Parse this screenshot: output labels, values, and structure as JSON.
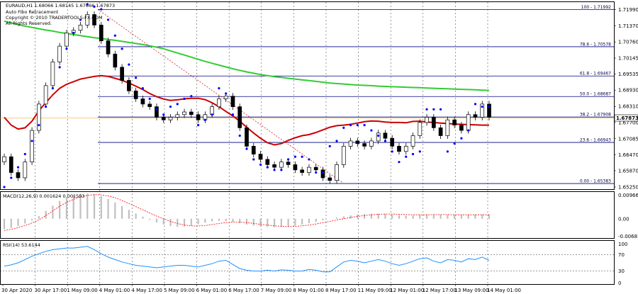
{
  "main_panel": {
    "symbol_line": "EURAUD,H1  1.68066 1.68145 1.67866 1.67873",
    "indicator_name": "Auto Fibo Retracement",
    "copyright": "Copyright © 2010 TRADERTOOLS-FX.COM",
    "rights": "All Rights Reserved.",
    "current_price": "1.67873",
    "price_ticks": [
      "1.71990",
      "1.71370",
      "1.70760",
      "1.70145",
      "1.69535",
      "1.68930",
      "1.68310",
      "1.67700",
      "1.67085",
      "1.66470",
      "1.65870",
      "1.65250"
    ],
    "fibo_levels": [
      {
        "label": "100 - 1.71992",
        "price": 1.71992
      },
      {
        "label": "78.6 - 1.70578",
        "price": 1.70578
      },
      {
        "label": "61.8 - 1.69467",
        "price": 1.69467
      },
      {
        "label": "50.0 - 1.68687",
        "price": 1.68687
      },
      {
        "label": "38.2 - 1.67908",
        "price": 1.67908
      },
      {
        "label": "23.6 - 1.66943",
        "price": 1.66943
      },
      {
        "label": "0.00 - 1.65383",
        "price": 1.65383
      }
    ]
  },
  "macd_panel": {
    "title": "MACD(12,26,9) 0.001624 0.001503",
    "ticks": [
      "0.00966",
      "0.00",
      "-0.00681"
    ]
  },
  "rsi_panel": {
    "title": "RSI(14) 53.6144",
    "ticks": [
      "100",
      "70",
      "30",
      "0"
    ]
  },
  "time_axis": [
    "30 Apr 2020",
    "30 Apr 17:00",
    "1 May 09:00",
    "4 May 01:00",
    "4 May 17:00",
    "5 May 09:00",
    "6 May 01:00",
    "6 May 17:00",
    "7 May 09:00",
    "8 May 01:00",
    "8 May 17:00",
    "11 May 09:00",
    "12 May 01:00",
    "12 May 17:00",
    "13 May 09:00",
    "14 May 01:00"
  ],
  "colors": {
    "candle": "#000000",
    "sar": "#0000ff",
    "ma_fast": "#cc0000",
    "ma_slow": "#33cc33",
    "fibo": "#000080",
    "macd_hist": "#c0c0c0",
    "macd_signal": "#ff0000",
    "rsi": "#1e90ff",
    "grid": "#000000",
    "price_line": "#ff9900"
  },
  "chart_data": [
    {
      "type": "candlestick",
      "title": "EURAUD,H1",
      "ylim": [
        1.6525,
        1.7219
      ],
      "series": [
        {
          "name": "close",
          "values": [
            1.664,
            1.658,
            1.656,
            1.662,
            1.674,
            1.684,
            1.691,
            1.7,
            1.706,
            1.711,
            1.712,
            1.714,
            1.718,
            1.714,
            1.708,
            1.703,
            1.698,
            1.693,
            1.689,
            1.686,
            1.684,
            1.683,
            1.679,
            1.678,
            1.679,
            1.68,
            1.681,
            1.68,
            1.678,
            1.68,
            1.683,
            1.686,
            1.687,
            1.683,
            1.675,
            1.668,
            1.665,
            1.663,
            1.661,
            1.66,
            1.662,
            1.661,
            1.659,
            1.658,
            1.66,
            1.659,
            1.656,
            1.655,
            1.661,
            1.668,
            1.67,
            1.669,
            1.668,
            1.67,
            1.673,
            1.671,
            1.668,
            1.666,
            1.668,
            1.672,
            1.677,
            1.679,
            1.675,
            1.672,
            1.678,
            1.676,
            1.674,
            1.68,
            1.679,
            1.684,
            1.679
          ]
        },
        {
          "name": "Parabolic SAR",
          "values": [
            1.6525,
            1.656,
            1.66,
            1.665,
            1.67,
            1.676,
            1.683,
            1.69,
            1.698,
            1.705,
            1.711,
            1.716,
            1.7219,
            1.721,
            1.72,
            1.716,
            1.71,
            1.705,
            1.699,
            1.694,
            1.69,
            1.686,
            1.682,
            1.68,
            1.683,
            1.684,
            1.686,
            1.687,
            1.676,
            1.678,
            1.68,
            1.69,
            1.688,
            1.68,
            1.672,
            1.667,
            1.663,
            1.661,
            1.66,
            1.659,
            1.659,
            1.663,
            1.664,
            1.664,
            1.663,
            1.658,
            1.658,
            1.668,
            1.67,
            1.675,
            1.676,
            1.676,
            1.676,
            1.674,
            1.672,
            1.67,
            1.666,
            1.662,
            1.664,
            1.665,
            1.666,
            1.682,
            1.682,
            1.682,
            1.666,
            1.669,
            1.671,
            1.674,
            1.684,
            1.683,
            1.683
          ]
        },
        {
          "name": "MA fast",
          "values": [
            1.679,
            1.676,
            1.6745,
            1.675,
            1.6775,
            1.6815,
            1.6845,
            1.6875,
            1.69,
            1.6915,
            1.6925,
            1.6935,
            1.694,
            1.6945,
            1.6948,
            1.6945,
            1.6938,
            1.693,
            1.692,
            1.6908,
            1.6895,
            1.688,
            1.6868,
            1.6859,
            1.6854,
            1.6856,
            1.686,
            1.6862,
            1.6862,
            1.6857,
            1.6845,
            1.683,
            1.6812,
            1.6795,
            1.6775,
            1.6752,
            1.673,
            1.671,
            1.6693,
            1.6685,
            1.669,
            1.6702,
            1.6712,
            1.672,
            1.6724,
            1.6732,
            1.6742,
            1.6752,
            1.6758,
            1.676,
            1.6763,
            1.6768,
            1.6773,
            1.6776,
            1.6775,
            1.6772,
            1.677,
            1.677,
            1.6769,
            1.6774,
            1.6775,
            1.6772,
            1.677,
            1.6768,
            1.6766,
            1.6764,
            1.6763,
            1.6762,
            1.6761,
            1.676,
            1.676
          ]
        },
        {
          "name": "MA slow",
          "values": [
            1.7155,
            1.7148,
            1.7142,
            1.7136,
            1.7131,
            1.7126,
            1.7121,
            1.7117,
            1.7112,
            1.7108,
            1.7104,
            1.71,
            1.7096,
            1.7092,
            1.7089,
            1.7085,
            1.7082,
            1.7078,
            1.7074,
            1.707,
            1.7066,
            1.7061,
            1.7056,
            1.705,
            1.7042,
            1.7034,
            1.7026,
            1.7018,
            1.701,
            1.7002,
            1.6995,
            1.6988,
            1.6981,
            1.6974,
            1.6968,
            1.6962,
            1.6957,
            1.6952,
            1.6948,
            1.6944,
            1.6941,
            1.6938,
            1.6935,
            1.6932,
            1.6929,
            1.6926,
            1.6923,
            1.692,
            1.6918,
            1.6916,
            1.6914,
            1.6912,
            1.6911,
            1.691,
            1.6908,
            1.6907,
            1.6906,
            1.6905,
            1.6904,
            1.6903,
            1.6902,
            1.6901,
            1.69,
            1.6899,
            1.6898,
            1.6897,
            1.6896,
            1.6895,
            1.6894,
            1.6893,
            1.6892
          ]
        }
      ]
    },
    {
      "type": "bar",
      "title": "MACD(12,26,9) 0.001624 0.001503",
      "ylim": [
        -0.00681,
        0.00966
      ],
      "series": [
        {
          "name": "MACD",
          "values": [
            -0.004,
            -0.0035,
            -0.0028,
            -0.0018,
            -0.0006,
            0.001,
            0.003,
            0.005,
            0.0068,
            0.008,
            0.009,
            0.0095,
            0.0096,
            0.0093,
            0.0086,
            0.0075,
            0.0062,
            0.0048,
            0.0034,
            0.002,
            0.0008,
            -0.0004,
            -0.0014,
            -0.0022,
            -0.0028,
            -0.0031,
            -0.003,
            -0.0026,
            -0.0021,
            -0.0015,
            -0.001,
            -0.0008,
            -0.0009,
            -0.0012,
            -0.0017,
            -0.0022,
            -0.0026,
            -0.0029,
            -0.0031,
            -0.0032,
            -0.0031,
            -0.0029,
            -0.0026,
            -0.0022,
            -0.0017,
            -0.0012,
            -0.0006,
            0.0,
            0.0005,
            0.0009,
            0.0013,
            0.0016,
            0.0018,
            0.0019,
            0.0019,
            0.0018,
            0.0016,
            0.0014,
            0.0012,
            0.0012,
            0.0014,
            0.0016,
            0.0017,
            0.0016,
            0.0015,
            0.0014,
            0.0014,
            0.0015,
            0.0016,
            0.0016,
            0.0016
          ]
        },
        {
          "name": "Signal",
          "values": [
            -0.0045,
            -0.004,
            -0.0034,
            -0.0026,
            -0.0016,
            -0.0004,
            0.0012,
            0.003,
            0.0048,
            0.0062,
            0.0074,
            0.0083,
            0.0089,
            0.0092,
            0.0091,
            0.0087,
            0.008,
            0.007,
            0.0058,
            0.0046,
            0.0034,
            0.0022,
            0.001,
            0.0,
            -0.001,
            -0.0018,
            -0.0024,
            -0.0027,
            -0.0028,
            -0.0026,
            -0.0022,
            -0.0018,
            -0.0015,
            -0.0013,
            -0.0013,
            -0.0015,
            -0.0018,
            -0.0021,
            -0.0024,
            -0.0027,
            -0.0029,
            -0.003,
            -0.0029,
            -0.0027,
            -0.0024,
            -0.002,
            -0.0015,
            -0.001,
            -0.0005,
            0.0,
            0.0005,
            0.0009,
            0.0012,
            0.0015,
            0.0017,
            0.0018,
            0.0018,
            0.0017,
            0.0016,
            0.0015,
            0.0015,
            0.0015,
            0.0016,
            0.0016,
            0.0016,
            0.0015,
            0.0015,
            0.0015,
            0.0015,
            0.0015,
            0.0015
          ]
        }
      ]
    },
    {
      "type": "line",
      "title": "RSI(14) 53.6144",
      "ylim": [
        0,
        100
      ],
      "series": [
        {
          "name": "RSI",
          "values": [
            42,
            45,
            50,
            58,
            66,
            72,
            78,
            82,
            84,
            86,
            86,
            88,
            90,
            82,
            72,
            64,
            58,
            52,
            48,
            44,
            42,
            40,
            38,
            40,
            42,
            44,
            44,
            42,
            40,
            44,
            48,
            54,
            56,
            46,
            36,
            32,
            30,
            30,
            32,
            30,
            33,
            32,
            30,
            30,
            34,
            32,
            28,
            28,
            40,
            52,
            56,
            54,
            50,
            54,
            58,
            54,
            48,
            44,
            48,
            54,
            60,
            62,
            54,
            50,
            58,
            56,
            52,
            60,
            58,
            64,
            56
          ]
        }
      ]
    }
  ]
}
